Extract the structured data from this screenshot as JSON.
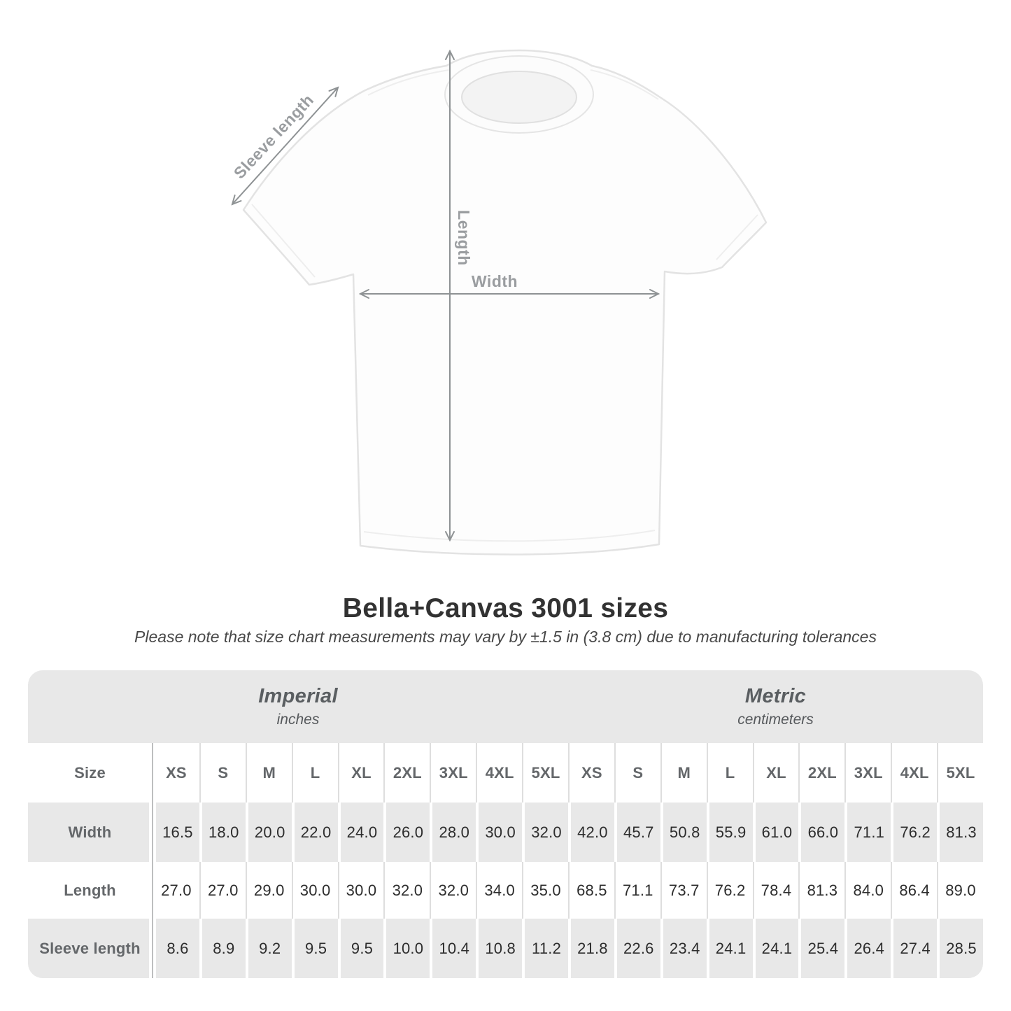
{
  "title": "Bella+Canvas 3001 sizes",
  "note": "Please note that size chart measurements may vary by ±1.5 in (3.8 cm) due to manufacturing tolerances",
  "diagram": {
    "sleeve_label": "Sleeve length",
    "length_label": "Length",
    "width_label": "Width"
  },
  "table": {
    "size_header": "Size",
    "sizes": [
      "XS",
      "S",
      "M",
      "L",
      "XL",
      "2XL",
      "3XL",
      "4XL",
      "5XL"
    ],
    "unit_groups": [
      {
        "label": "Imperial",
        "sublabel": "inches"
      },
      {
        "label": "Metric",
        "sublabel": "centimeters"
      }
    ],
    "rows": [
      {
        "label": "Width",
        "imperial": [
          "16.5",
          "18.0",
          "20.0",
          "22.0",
          "24.0",
          "26.0",
          "28.0",
          "30.0",
          "32.0"
        ],
        "metric": [
          "42.0",
          "45.7",
          "50.8",
          "55.9",
          "61.0",
          "66.0",
          "71.1",
          "76.2",
          "81.3"
        ]
      },
      {
        "label": "Length",
        "imperial": [
          "27.0",
          "27.0",
          "29.0",
          "30.0",
          "30.0",
          "32.0",
          "32.0",
          "34.0",
          "35.0"
        ],
        "metric": [
          "68.5",
          "71.1",
          "73.7",
          "76.2",
          "78.4",
          "81.3",
          "84.0",
          "86.4",
          "89.0"
        ]
      },
      {
        "label": "Sleeve length",
        "imperial": [
          "8.6",
          "8.9",
          "9.2",
          "9.5",
          "9.5",
          "10.0",
          "10.4",
          "10.8",
          "11.2"
        ],
        "metric": [
          "21.8",
          "22.6",
          "23.4",
          "24.1",
          "24.1",
          "25.4",
          "26.4",
          "27.4",
          "28.5"
        ]
      }
    ]
  },
  "chart_data": {
    "type": "table",
    "title": "Bella+Canvas 3001 sizes",
    "subtitle": "Please note that size chart measurements may vary by ±1.5 in (3.8 cm) due to manufacturing tolerances",
    "columns": [
      "Size",
      "XS",
      "S",
      "M",
      "L",
      "XL",
      "2XL",
      "3XL",
      "4XL",
      "5XL"
    ],
    "sections": [
      {
        "name": "Imperial",
        "unit": "inches",
        "rows": [
          {
            "label": "Width",
            "values": [
              16.5,
              18.0,
              20.0,
              22.0,
              24.0,
              26.0,
              28.0,
              30.0,
              32.0
            ]
          },
          {
            "label": "Length",
            "values": [
              27.0,
              27.0,
              29.0,
              30.0,
              30.0,
              32.0,
              32.0,
              34.0,
              35.0
            ]
          },
          {
            "label": "Sleeve length",
            "values": [
              8.6,
              8.9,
              9.2,
              9.5,
              9.5,
              10.0,
              10.4,
              10.8,
              11.2
            ]
          }
        ]
      },
      {
        "name": "Metric",
        "unit": "centimeters",
        "rows": [
          {
            "label": "Width",
            "values": [
              42.0,
              45.7,
              50.8,
              55.9,
              61.0,
              66.0,
              71.1,
              76.2,
              81.3
            ]
          },
          {
            "label": "Length",
            "values": [
              68.5,
              71.1,
              73.7,
              76.2,
              78.4,
              81.3,
              84.0,
              86.4,
              89.0
            ]
          },
          {
            "label": "Sleeve length",
            "values": [
              21.8,
              22.6,
              23.4,
              24.1,
              24.1,
              25.4,
              26.4,
              27.4,
              28.5
            ]
          }
        ]
      }
    ]
  },
  "colors": {
    "stripe_gray": "#e8e8e8",
    "table_text": "#2d2d2d",
    "muted_label": "#64676a",
    "arrow_gray": "#8e9294",
    "diagram_label_gray": "#9a9da0",
    "title_text": "#323232"
  }
}
